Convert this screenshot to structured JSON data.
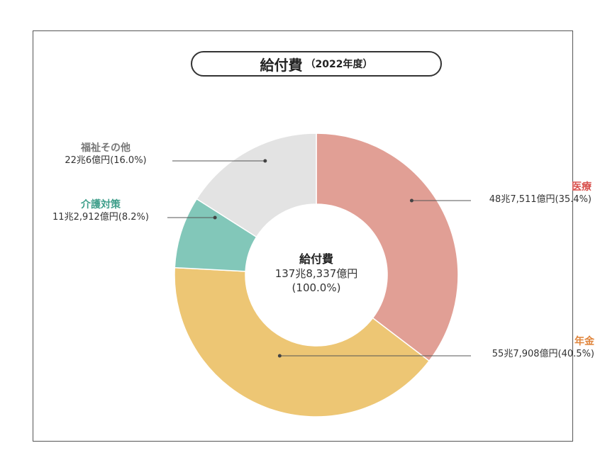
{
  "title": {
    "main": "給付費",
    "sub": "（2022年度）"
  },
  "colors": {
    "medical": "#E19F95",
    "pension": "#EDC674",
    "care": "#82C7B9",
    "welfare": "#E3E3E3",
    "label_medical": "#D9534F",
    "label_pension": "#E0853C",
    "label_care": "#3E9E8A",
    "label_welfare": "#777777"
  },
  "center": {
    "name": "給付費",
    "amount": "137兆8,337億円",
    "percent": "(100.0%)"
  },
  "chart_data": {
    "type": "pie",
    "donut": true,
    "title": "給付費（2022年度）",
    "total_label": "137兆8,337億円",
    "slices": [
      {
        "name": "医療",
        "value": 35.4,
        "amount": "48兆7,511億円",
        "percent_label": "(35.4%)"
      },
      {
        "name": "年金",
        "value": 40.5,
        "amount": "55兆7,908億円",
        "percent_label": "(40.5%)"
      },
      {
        "name": "介護対策",
        "value": 8.2,
        "amount": "11兆2,912億円",
        "percent_label": "(8.2%)"
      },
      {
        "name": "福祉その他",
        "value": 16.0,
        "amount": "22兆6億円",
        "percent_label": "(16.0%)"
      }
    ]
  }
}
